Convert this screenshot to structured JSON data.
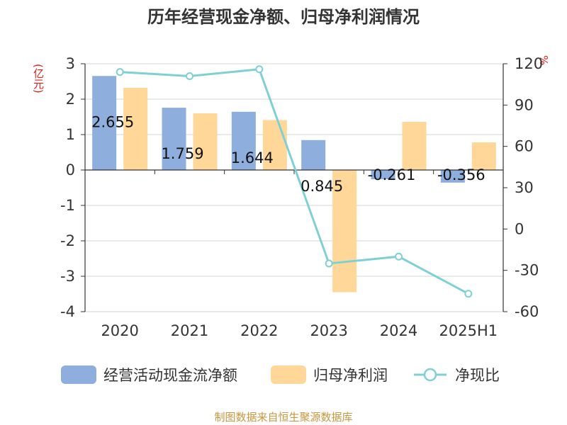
{
  "title": "历年经营现金净额、归母净利润情况",
  "left_unit": "(亿元)",
  "right_unit": "%",
  "source": "制图数据来自恒生聚源数据库",
  "colors": {
    "bar1": "#8eaedd",
    "bar2": "#ffd798",
    "line": "#7fd0d5",
    "axis": "#333333",
    "grid": "#d4d4d4"
  },
  "chart_data": {
    "type": "bar+line",
    "categories": [
      "2020",
      "2021",
      "2022",
      "2023",
      "2024",
      "2025H1"
    ],
    "left_axis": {
      "ylim": [
        -4,
        3
      ],
      "ticks": [
        "3",
        "2",
        "1",
        "0",
        "-1",
        "-2",
        "-3",
        "-4"
      ]
    },
    "right_axis": {
      "ylim": [
        -60,
        120
      ],
      "ticks": [
        "120",
        "90",
        "60",
        "30",
        "0",
        "-30",
        "-60"
      ]
    },
    "series": [
      {
        "name": "经营活动现金流净额",
        "type": "bar",
        "axis": "left",
        "values": [
          2.655,
          1.759,
          1.644,
          0.845,
          -0.261,
          -0.356
        ],
        "labels": [
          "2.655",
          "1.759",
          "1.644",
          "0.845",
          "-0.261",
          "-0.356"
        ]
      },
      {
        "name": "归母净利润",
        "type": "bar",
        "axis": "left",
        "values": [
          2.32,
          1.6,
          1.41,
          -3.45,
          1.36,
          0.78
        ]
      },
      {
        "name": "净现比",
        "type": "line",
        "axis": "right",
        "values": [
          114,
          111,
          116,
          -25,
          -20,
          -47
        ]
      }
    ],
    "legend_position": "bottom",
    "grid": true
  }
}
